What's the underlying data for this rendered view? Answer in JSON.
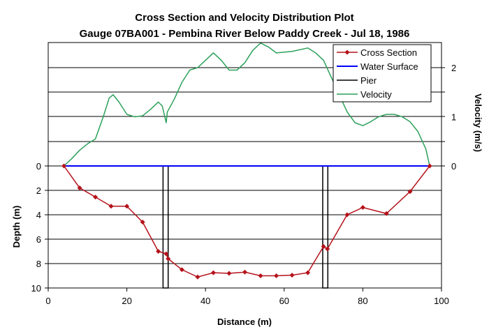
{
  "chart_data": {
    "type": "line",
    "title": "Cross Section and Velocity Distribution Plot",
    "subtitle": "Gauge 07BA001 - Pembina River Below Paddy Creek - Jul 18, 1986",
    "xlabel": "Distance (m)",
    "ylabel_left": "Depth (m)",
    "ylabel_right": "Velocity (m/s)",
    "xlim": [
      0,
      100
    ],
    "x_ticks": [
      "0",
      "20",
      "40",
      "60",
      "80",
      "100"
    ],
    "depth_ticks": [
      "0",
      "2",
      "4",
      "6",
      "8",
      "10"
    ],
    "velocity_ticks": [
      "0",
      "1",
      "2"
    ],
    "grid": true,
    "legend_position": "top-right",
    "series": [
      {
        "name": "Cross Section",
        "kind": "depth",
        "color": "#b5121b",
        "points": [
          [
            4,
            0
          ],
          [
            8,
            1.8
          ],
          [
            12,
            2.55
          ],
          [
            16,
            3.3
          ],
          [
            20,
            3.3
          ],
          [
            24,
            4.6
          ],
          [
            28,
            7.0
          ],
          [
            30,
            7.2
          ],
          [
            30.5,
            7.6
          ],
          [
            34,
            8.5
          ],
          [
            38,
            9.1
          ],
          [
            42,
            8.75
          ],
          [
            46,
            8.8
          ],
          [
            50,
            8.7
          ],
          [
            54,
            9.0
          ],
          [
            58,
            9.0
          ],
          [
            62,
            8.95
          ],
          [
            66,
            8.75
          ],
          [
            70,
            6.6
          ],
          [
            71,
            6.8
          ],
          [
            76,
            4.0
          ],
          [
            80,
            3.4
          ],
          [
            86,
            3.9
          ],
          [
            92,
            2.1
          ],
          [
            97,
            0
          ]
        ]
      },
      {
        "name": "Water Surface",
        "kind": "depth",
        "color": "#0000ff",
        "points": [
          [
            4,
            0
          ],
          [
            97,
            0
          ]
        ]
      },
      {
        "name": "Pier",
        "kind": "depth",
        "color": "#000000",
        "piers": [
          {
            "left": 29.2,
            "right": 30.5,
            "top": 0,
            "bottom": 10
          },
          {
            "left": 69.8,
            "right": 71.1,
            "top": 0,
            "bottom": 10
          }
        ]
      },
      {
        "name": "Velocity",
        "kind": "velocity",
        "color": "#2ca05a",
        "points": [
          [
            4,
            0
          ],
          [
            6,
            0.15
          ],
          [
            8,
            0.32
          ],
          [
            10,
            0.45
          ],
          [
            12,
            0.55
          ],
          [
            14,
            1.0
          ],
          [
            15.5,
            1.38
          ],
          [
            16.5,
            1.45
          ],
          [
            18,
            1.3
          ],
          [
            20,
            1.05
          ],
          [
            22,
            1.0
          ],
          [
            24,
            1.02
          ],
          [
            26,
            1.15
          ],
          [
            28,
            1.3
          ],
          [
            29,
            1.22
          ],
          [
            30,
            0.88
          ],
          [
            30.3,
            1.1
          ],
          [
            32,
            1.35
          ],
          [
            34,
            1.7
          ],
          [
            36,
            1.95
          ],
          [
            38,
            2.0
          ],
          [
            40,
            2.15
          ],
          [
            42,
            2.3
          ],
          [
            44,
            2.15
          ],
          [
            46,
            1.95
          ],
          [
            48,
            1.95
          ],
          [
            50,
            2.1
          ],
          [
            52,
            2.35
          ],
          [
            54,
            2.5
          ],
          [
            56,
            2.42
          ],
          [
            58,
            2.3
          ],
          [
            62,
            2.33
          ],
          [
            66,
            2.4
          ],
          [
            68,
            2.3
          ],
          [
            70,
            2.15
          ],
          [
            72,
            1.8
          ],
          [
            74,
            1.45
          ],
          [
            76,
            1.1
          ],
          [
            78,
            0.88
          ],
          [
            80,
            0.82
          ],
          [
            82,
            0.9
          ],
          [
            84,
            1.0
          ],
          [
            86,
            1.05
          ],
          [
            88,
            1.05
          ],
          [
            90,
            1.0
          ],
          [
            92,
            0.9
          ],
          [
            94,
            0.7
          ],
          [
            96,
            0.35
          ],
          [
            97,
            0
          ]
        ]
      }
    ]
  }
}
